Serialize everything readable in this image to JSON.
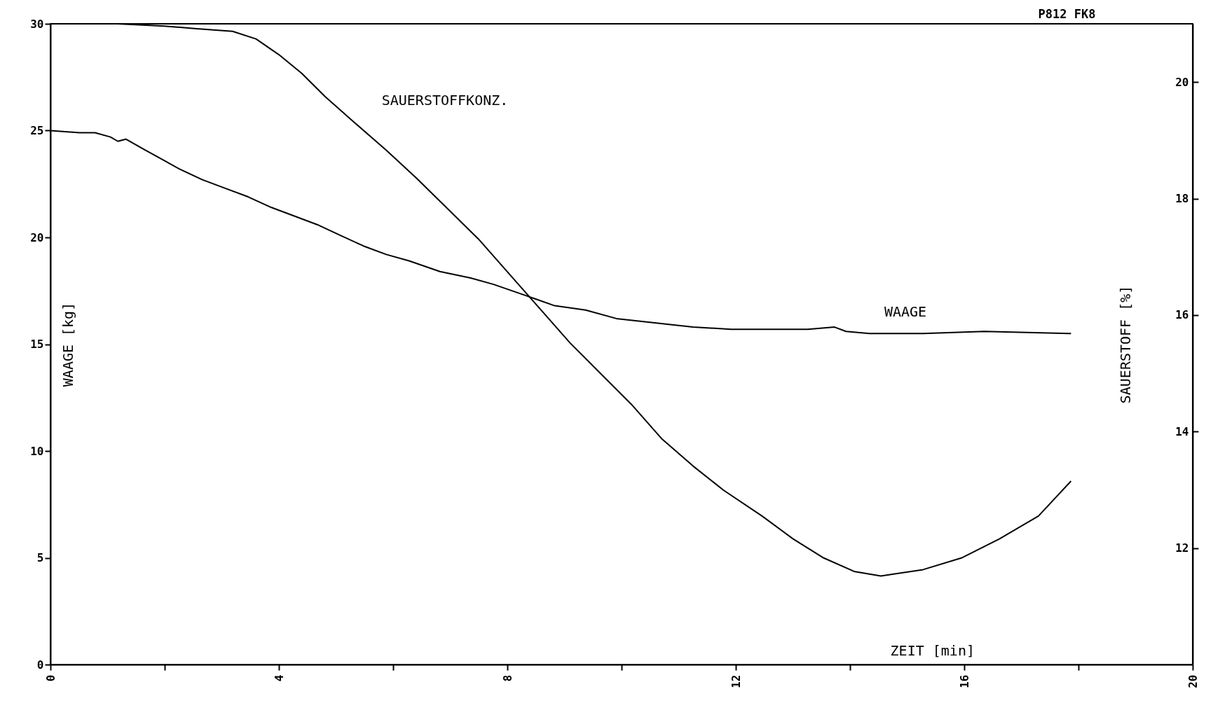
{
  "chart_data": {
    "type": "line",
    "xlabel": "ZEIT [min]",
    "ylabel": "WAAGE [kg]",
    "y2label": "SAUERSTOFF [%]",
    "annotations": [
      "P812   FK8"
    ],
    "xlim": [
      0,
      20
    ],
    "xticks": [
      0,
      {
        "value": 2,
        "label": null
      },
      4,
      {
        "value": 6,
        "label": null
      },
      8,
      {
        "value": 10,
        "label": null
      },
      12,
      {
        "value": 14,
        "label": null
      },
      16,
      {
        "value": 18,
        "label": null
      },
      20
    ],
    "ylim": [
      0,
      30
    ],
    "yticks": [
      0,
      5,
      10,
      15,
      20,
      25,
      30
    ],
    "y2lim": [
      10,
      21
    ],
    "y2ticks": [
      12,
      14,
      16,
      18,
      20
    ],
    "grid": false,
    "marker": "none",
    "line_style": "solid",
    "series": [
      {
        "name": "WAAGE",
        "color": "#000000",
        "x": [
          0,
          0.51,
          0.78,
          1.05,
          1.18,
          1.32,
          1.65,
          1.99,
          2.26,
          2.66,
          3.06,
          3.46,
          3.87,
          4.27,
          4.67,
          5.07,
          5.48,
          5.88,
          6.28,
          6.82,
          7.36,
          7.76,
          8.3,
          8.83,
          9.37,
          9.91,
          10.58,
          11.25,
          11.92,
          12.59,
          13.26,
          13.73,
          13.93,
          14.34,
          15.28,
          16.35,
          17.87
        ],
        "values": [
          25.0,
          24.9,
          24.9,
          24.7,
          24.5,
          24.6,
          24.1,
          23.6,
          23.2,
          22.7,
          22.3,
          21.9,
          21.4,
          21.0,
          20.6,
          20.1,
          19.6,
          19.2,
          18.9,
          18.4,
          18.1,
          17.8,
          17.3,
          16.8,
          16.6,
          16.2,
          16.0,
          15.8,
          15.7,
          15.7,
          15.7,
          15.8,
          15.6,
          15.5,
          15.5,
          15.6,
          15.5
        ]
      },
      {
        "name": "SAUERSTOFFKONZ.",
        "color": "#000000",
        "axis": "y2",
        "x": [
          0,
          1.18,
          1.99,
          2.52,
          3.19,
          3.6,
          4.0,
          4.4,
          4.81,
          5.34,
          5.88,
          6.42,
          6.95,
          7.49,
          8.03,
          8.56,
          9.1,
          9.64,
          10.17,
          10.71,
          11.25,
          11.79,
          12.46,
          13.0,
          13.54,
          14.07,
          14.54,
          15.28,
          15.95,
          16.62,
          17.3,
          17.87
        ],
        "values": [
          21.0,
          21.0,
          20.96,
          20.92,
          20.87,
          20.74,
          20.47,
          20.15,
          19.75,
          19.29,
          18.83,
          18.34,
          17.83,
          17.31,
          16.71,
          16.12,
          15.52,
          14.99,
          14.47,
          13.87,
          13.41,
          12.99,
          12.55,
          12.16,
          11.83,
          11.6,
          11.52,
          11.63,
          11.83,
          12.16,
          12.55,
          13.15
        ]
      }
    ]
  }
}
